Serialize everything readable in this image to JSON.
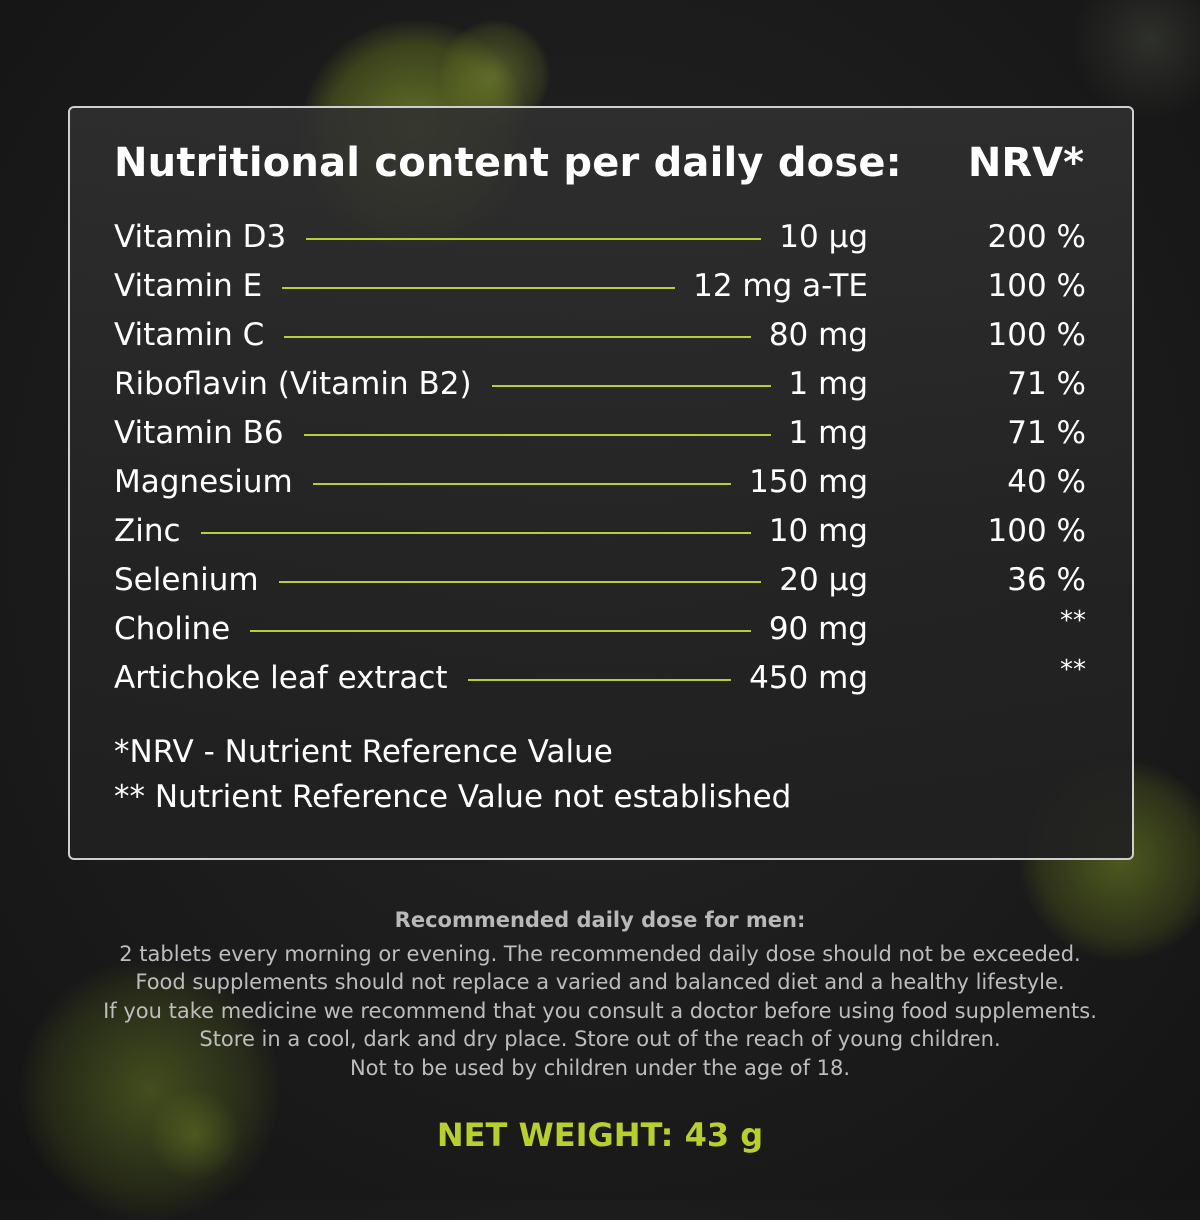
{
  "panel": {
    "title": "Nutritional content per daily dose:",
    "nrv_header": "NRV*",
    "rows": [
      {
        "name": "Vitamin D3",
        "amount": "10 µg",
        "nrv": "200 %"
      },
      {
        "name": "Vitamin E",
        "amount": "12 mg a-TE",
        "nrv": "100 %"
      },
      {
        "name": "Vitamin C",
        "amount": "80 mg",
        "nrv": "100 %"
      },
      {
        "name": "Riboflavin (Vitamin B2)",
        "amount": "1 mg",
        "nrv": "71 %"
      },
      {
        "name": "Vitamin B6",
        "amount": "1 mg",
        "nrv": "71 %"
      },
      {
        "name": "Magnesium",
        "amount": "150 mg",
        "nrv": "40 %"
      },
      {
        "name": "Zinc",
        "amount": "10 mg",
        "nrv": "100 %"
      },
      {
        "name": "Selenium",
        "amount": "20 µg",
        "nrv": "36 %"
      },
      {
        "name": "Choline",
        "amount": "90 mg",
        "nrv": "**"
      },
      {
        "name": "Artichoke leaf extract",
        "amount": "450 mg",
        "nrv": "**"
      }
    ],
    "footnotes": [
      "*NRV - Nutrient Reference Value",
      "** Nutrient Reference Value not established"
    ]
  },
  "info": {
    "title": "Recommended daily dose for men:",
    "lines": [
      "2 tablets every morning or evening. The recommended daily dose should not be exceeded.",
      "Food supplements should not replace a varied and balanced diet and a healthy lifestyle.",
      "If you take medicine we recommend that you consult a doctor before using food supplements.",
      "Store in a cool, dark and dry place. Store out of the reach of young children.",
      "Not to be used by children under the age of 18."
    ]
  },
  "net_weight": "NET WEIGHT: 43 g",
  "colors": {
    "accent": "#b9cf2e",
    "background": "#1c1c1c",
    "panel_border": "#cfcfcf"
  }
}
